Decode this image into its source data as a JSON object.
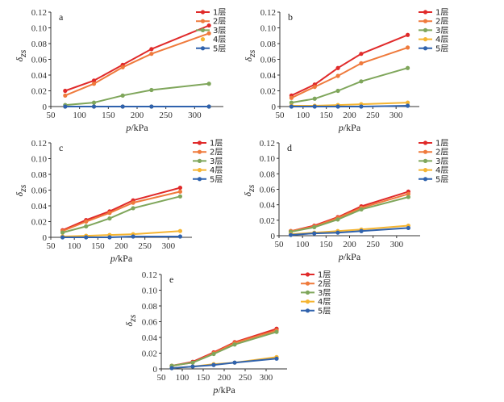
{
  "chart_data": [
    {
      "type": "line",
      "panel_label": "a",
      "xlabel": "p/kPa",
      "ylabel": "δ",
      "ylabel_sub": "zs",
      "x_ticks": [
        "50",
        "100",
        "150",
        "200",
        "250",
        "300"
      ],
      "y_ticks": [
        "0",
        "0.02",
        "0.04",
        "0.06",
        "0.08",
        "0.10",
        "0.12"
      ],
      "xlim": [
        50,
        350
      ],
      "ylim": [
        0,
        0.12
      ],
      "x": [
        75,
        125,
        175,
        225,
        325
      ],
      "series": [
        {
          "name": "1层",
          "color": "#e02a2a",
          "marker": "circle",
          "values": [
            0.02,
            0.033,
            0.053,
            0.073,
            0.103
          ]
        },
        {
          "name": "2层",
          "color": "#ef7a3c",
          "marker": "circle",
          "values": [
            0.014,
            0.029,
            0.05,
            0.067,
            0.093
          ]
        },
        {
          "name": "3层",
          "color": "#7fa65b",
          "marker": "circle",
          "values": [
            0.002,
            0.005,
            0.014,
            0.021,
            0.029
          ]
        },
        {
          "name": "4层",
          "color": "#f5b532",
          "marker": "circle",
          "line": false,
          "values": [
            0.0,
            0.0,
            0.0,
            0.0,
            0.0
          ]
        },
        {
          "name": "5层",
          "color": "#2f62ad",
          "marker": "circle",
          "values": [
            0.0,
            0.0,
            0.0,
            0.0,
            0.0
          ]
        }
      ]
    },
    {
      "type": "line",
      "panel_label": "b",
      "xlabel": "p/kPa",
      "ylabel": "δ",
      "ylabel_sub": "zs",
      "x_ticks": [
        "50",
        "100",
        "150",
        "200",
        "250",
        "300"
      ],
      "y_ticks": [
        "0",
        "0.02",
        "0.04",
        "0.06",
        "0.08",
        "0.10",
        "0.12"
      ],
      "xlim": [
        50,
        350
      ],
      "ylim": [
        0,
        0.12
      ],
      "x": [
        75,
        125,
        175,
        225,
        325
      ],
      "series": [
        {
          "name": "1层",
          "color": "#e02a2a",
          "marker": "circle",
          "values": [
            0.014,
            0.028,
            0.049,
            0.067,
            0.091
          ]
        },
        {
          "name": "2层",
          "color": "#ef7a3c",
          "marker": "circle",
          "values": [
            0.011,
            0.025,
            0.039,
            0.055,
            0.075
          ]
        },
        {
          "name": "3层",
          "color": "#7fa65b",
          "marker": "circle",
          "values": [
            0.005,
            0.01,
            0.02,
            0.032,
            0.049
          ]
        },
        {
          "name": "4层",
          "color": "#f5b532",
          "marker": "circle",
          "values": [
            0.001,
            0.001,
            0.002,
            0.003,
            0.005
          ]
        },
        {
          "name": "5层",
          "color": "#2f62ad",
          "marker": "circle",
          "values": [
            0.0,
            0.0,
            0.0,
            0.0,
            0.001
          ]
        }
      ]
    },
    {
      "type": "line",
      "panel_label": "c",
      "xlabel": "p/kPa",
      "ylabel": "δ",
      "ylabel_sub": "zs",
      "x_ticks": [
        "50",
        "100",
        "150",
        "200",
        "250",
        "300"
      ],
      "y_ticks": [
        "0",
        "0.02",
        "0.04",
        "0.06",
        "0.08",
        "0.10",
        "0.12"
      ],
      "xlim": [
        50,
        350
      ],
      "ylim": [
        0,
        0.12
      ],
      "x": [
        75,
        125,
        175,
        225,
        325
      ],
      "series": [
        {
          "name": "1层",
          "color": "#e02a2a",
          "marker": "circle",
          "values": [
            0.009,
            0.022,
            0.033,
            0.047,
            0.063
          ]
        },
        {
          "name": "2层",
          "color": "#ef7a3c",
          "marker": "circle",
          "values": [
            0.008,
            0.02,
            0.031,
            0.044,
            0.058
          ]
        },
        {
          "name": "3层",
          "color": "#7fa65b",
          "marker": "circle",
          "values": [
            0.006,
            0.014,
            0.024,
            0.037,
            0.052
          ]
        },
        {
          "name": "4层",
          "color": "#f5b532",
          "marker": "circle",
          "values": [
            0.001,
            0.002,
            0.003,
            0.004,
            0.008
          ]
        },
        {
          "name": "5层",
          "color": "#2f62ad",
          "marker": "circle",
          "values": [
            0.0,
            0.0,
            0.0,
            0.001,
            0.001
          ]
        }
      ]
    },
    {
      "type": "line",
      "panel_label": "d",
      "xlabel": "p/kPa",
      "ylabel": "δ",
      "ylabel_sub": "zs",
      "x_ticks": [
        "50",
        "100",
        "150",
        "200",
        "250",
        "300"
      ],
      "y_ticks": [
        "0",
        "0.02",
        "0.04",
        "0.06",
        "0.08",
        "0.10",
        "0.12"
      ],
      "xlim": [
        50,
        350
      ],
      "ylim": [
        0,
        0.12
      ],
      "x": [
        75,
        125,
        175,
        225,
        325
      ],
      "series": [
        {
          "name": "1层",
          "color": "#e02a2a",
          "marker": "circle",
          "values": [
            0.006,
            0.013,
            0.024,
            0.038,
            0.057
          ]
        },
        {
          "name": "2层",
          "color": "#ef7a3c",
          "marker": "circle",
          "values": [
            0.006,
            0.012,
            0.023,
            0.036,
            0.054
          ]
        },
        {
          "name": "3层",
          "color": "#7fa65b",
          "marker": "circle",
          "values": [
            0.005,
            0.011,
            0.021,
            0.034,
            0.05
          ]
        },
        {
          "name": "4层",
          "color": "#f5b532",
          "marker": "circle",
          "values": [
            0.002,
            0.004,
            0.006,
            0.008,
            0.013
          ]
        },
        {
          "name": "5层",
          "color": "#2f62ad",
          "marker": "circle",
          "values": [
            0.001,
            0.003,
            0.004,
            0.006,
            0.01
          ]
        }
      ]
    },
    {
      "type": "line",
      "panel_label": "e",
      "xlabel": "p/kPa",
      "ylabel": "δ",
      "ylabel_sub": "zs",
      "x_ticks": [
        "50",
        "100",
        "150",
        "200",
        "250",
        "300"
      ],
      "y_ticks": [
        "0",
        "0.02",
        "0.04",
        "0.06",
        "0.08",
        "0.10",
        "0.12"
      ],
      "xlim": [
        50,
        350
      ],
      "ylim": [
        0,
        0.12
      ],
      "x": [
        75,
        125,
        175,
        225,
        325
      ],
      "series": [
        {
          "name": "1层",
          "color": "#e02a2a",
          "marker": "circle",
          "values": [
            0.004,
            0.009,
            0.021,
            0.034,
            0.051
          ]
        },
        {
          "name": "2层",
          "color": "#ef7a3c",
          "marker": "circle",
          "values": [
            0.004,
            0.008,
            0.02,
            0.033,
            0.049
          ]
        },
        {
          "name": "3层",
          "color": "#7fa65b",
          "marker": "circle",
          "values": [
            0.004,
            0.008,
            0.019,
            0.031,
            0.047
          ]
        },
        {
          "name": "4层",
          "color": "#f5b532",
          "marker": "circle",
          "values": [
            0.001,
            0.003,
            0.006,
            0.008,
            0.015
          ]
        },
        {
          "name": "5层",
          "color": "#2f62ad",
          "marker": "circle",
          "values": [
            0.001,
            0.003,
            0.005,
            0.008,
            0.013
          ]
        }
      ]
    }
  ]
}
